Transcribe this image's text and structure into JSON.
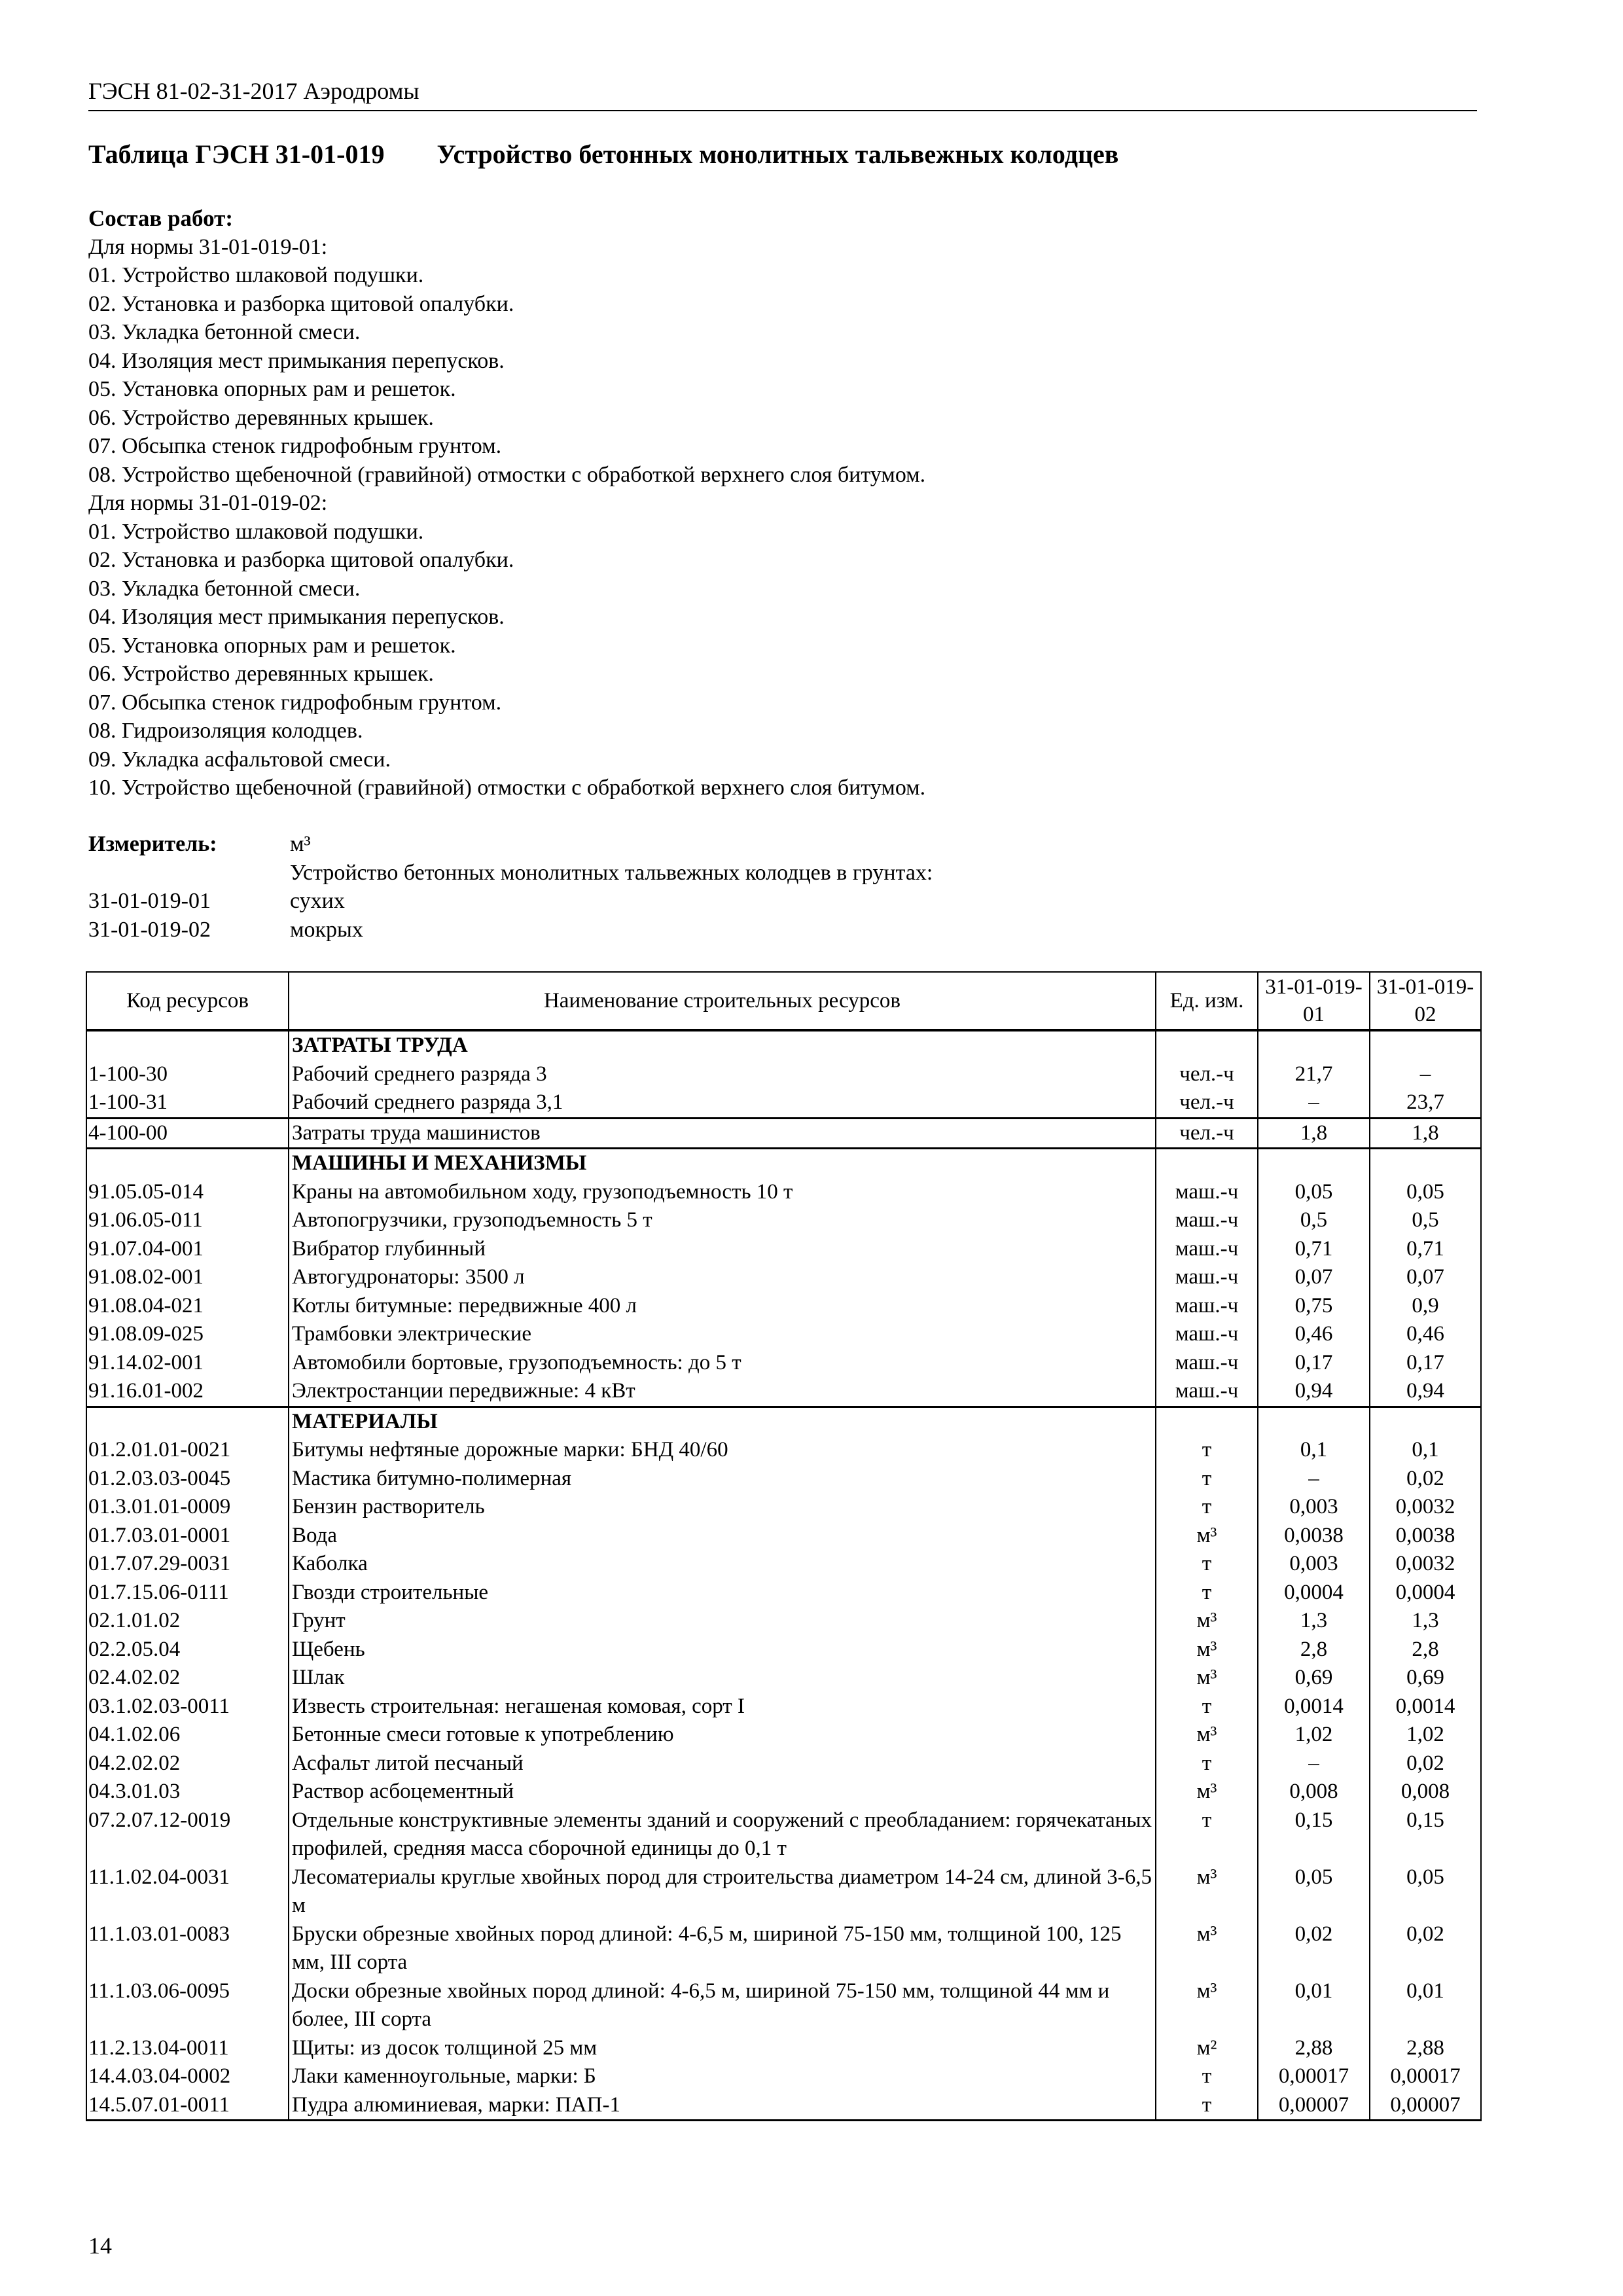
{
  "running_header": "ГЭСН 81-02-31-2017 Аэродромы",
  "title": {
    "number": "Таблица ГЭСН 31-01-019",
    "text": "Устройство бетонных монолитных тальвежных колодцев"
  },
  "works": {
    "heading": "Состав работ:",
    "lines": [
      "Для нормы 31-01-019-01:",
      "01. Устройство шлаковой подушки.",
      "02. Установка и разборка щитовой опалубки.",
      "03. Укладка бетонной смеси.",
      "04. Изоляция мест примыкания перепусков.",
      "05. Установка опорных рам и решеток.",
      "06. Устройство деревянных крышек.",
      "07. Обсыпка стенок гидрофобным грунтом.",
      "08. Устройство щебеночной (гравийной) отмостки с обработкой верхнего слоя битумом.",
      "Для нормы 31-01-019-02:",
      "01. Устройство шлаковой подушки.",
      "02. Установка и разборка щитовой опалубки.",
      "03. Укладка бетонной смеси.",
      "04. Изоляция мест примыкания перепусков.",
      "05. Установка опорных рам и решеток.",
      "06. Устройство деревянных крышек.",
      "07. Обсыпка стенок гидрофобным грунтом.",
      "08. Гидроизоляция колодцев.",
      "09. Укладка асфальтовой смеси.",
      "10. Устройство щебеночной (гравийной) отмостки с обработкой верхнего слоя битумом."
    ]
  },
  "meter": {
    "label": "Измеритель:",
    "unit": "м³",
    "description": "Устройство бетонных монолитных тальвежных колодцев в грунтах:",
    "norms": [
      {
        "code": "31-01-019-01",
        "text": "сухих"
      },
      {
        "code": "31-01-019-02",
        "text": "мокрых"
      }
    ]
  },
  "table": {
    "headers": [
      "Код ресурсов",
      "Наименование строительных ресурсов",
      "Ед. изм.",
      "31-01-019-01",
      "31-01-019-02"
    ],
    "rows": [
      {
        "type": "section",
        "name": "ЗАТРАТЫ ТРУДА"
      },
      {
        "code": "1-100-30",
        "name": "Рабочий среднего разряда 3",
        "unit": "чел.-ч",
        "v1": "21,7",
        "v2": "–"
      },
      {
        "code": "1-100-31",
        "name": "Рабочий среднего разряда 3,1",
        "unit": "чел.-ч",
        "v1": "–",
        "v2": "23,7",
        "end": true
      },
      {
        "code": "4-100-00",
        "name": "Затраты труда машинистов",
        "unit": "чел.-ч",
        "v1": "1,8",
        "v2": "1,8",
        "end": true
      },
      {
        "type": "section",
        "name": "МАШИНЫ И МЕХАНИЗМЫ"
      },
      {
        "code": "91.05.05-014",
        "name": "Краны на автомобильном ходу, грузоподъемность 10 т",
        "unit": "маш.-ч",
        "v1": "0,05",
        "v2": "0,05"
      },
      {
        "code": "91.06.05-011",
        "name": "Автопогрузчики, грузоподъемность 5 т",
        "unit": "маш.-ч",
        "v1": "0,5",
        "v2": "0,5"
      },
      {
        "code": "91.07.04-001",
        "name": "Вибратор глубинный",
        "unit": "маш.-ч",
        "v1": "0,71",
        "v2": "0,71"
      },
      {
        "code": "91.08.02-001",
        "name": "Автогудронаторы: 3500 л",
        "unit": "маш.-ч",
        "v1": "0,07",
        "v2": "0,07"
      },
      {
        "code": "91.08.04-021",
        "name": "Котлы битумные: передвижные 400 л",
        "unit": "маш.-ч",
        "v1": "0,75",
        "v2": "0,9"
      },
      {
        "code": "91.08.09-025",
        "name": "Трамбовки электрические",
        "unit": "маш.-ч",
        "v1": "0,46",
        "v2": "0,46"
      },
      {
        "code": "91.14.02-001",
        "name": "Автомобили бортовые, грузоподъемность: до 5 т",
        "unit": "маш.-ч",
        "v1": "0,17",
        "v2": "0,17"
      },
      {
        "code": "91.16.01-002",
        "name": "Электростанции передвижные: 4 кВт",
        "unit": "маш.-ч",
        "v1": "0,94",
        "v2": "0,94",
        "end": true
      },
      {
        "type": "section",
        "name": "МАТЕРИАЛЫ"
      },
      {
        "code": "01.2.01.01-0021",
        "name": "Битумы нефтяные дорожные марки: БНД 40/60",
        "unit": "т",
        "v1": "0,1",
        "v2": "0,1"
      },
      {
        "code": "01.2.03.03-0045",
        "name": "Мастика битумно-полимерная",
        "unit": "т",
        "v1": "–",
        "v2": "0,02"
      },
      {
        "code": "01.3.01.01-0009",
        "name": "Бензин растворитель",
        "unit": "т",
        "v1": "0,003",
        "v2": "0,0032"
      },
      {
        "code": "01.7.03.01-0001",
        "name": "Вода",
        "unit": "м³",
        "v1": "0,0038",
        "v2": "0,0038"
      },
      {
        "code": "01.7.07.29-0031",
        "name": "Каболка",
        "unit": "т",
        "v1": "0,003",
        "v2": "0,0032"
      },
      {
        "code": "01.7.15.06-0111",
        "name": "Гвозди строительные",
        "unit": "т",
        "v1": "0,0004",
        "v2": "0,0004"
      },
      {
        "code": "02.1.01.02",
        "name": "Грунт",
        "unit": "м³",
        "v1": "1,3",
        "v2": "1,3"
      },
      {
        "code": "02.2.05.04",
        "name": "Щебень",
        "unit": "м³",
        "v1": "2,8",
        "v2": "2,8"
      },
      {
        "code": "02.4.02.02",
        "name": "Шлак",
        "unit": "м³",
        "v1": "0,69",
        "v2": "0,69"
      },
      {
        "code": "03.1.02.03-0011",
        "name": "Известь строительная: негашеная комовая, сорт I",
        "unit": "т",
        "v1": "0,0014",
        "v2": "0,0014"
      },
      {
        "code": "04.1.02.06",
        "name": "Бетонные смеси готовые к употреблению",
        "unit": "м³",
        "v1": "1,02",
        "v2": "1,02"
      },
      {
        "code": "04.2.02.02",
        "name": "Асфальт литой песчаный",
        "unit": "т",
        "v1": "–",
        "v2": "0,02"
      },
      {
        "code": "04.3.01.03",
        "name": "Раствор асбоцементный",
        "unit": "м³",
        "v1": "0,008",
        "v2": "0,008"
      },
      {
        "code": "07.2.07.12-0019",
        "name": "Отдельные конструктивные элементы зданий и сооружений с преобладанием: горячекатаных профилей, средняя масса сборочной единицы до 0,1 т",
        "unit": "т",
        "v1": "0,15",
        "v2": "0,15"
      },
      {
        "code": "11.1.02.04-0031",
        "name": "Лесоматериалы круглые хвойных пород для строительства диаметром 14-24 см, длиной 3-6,5 м",
        "unit": "м³",
        "v1": "0,05",
        "v2": "0,05"
      },
      {
        "code": "11.1.03.01-0083",
        "name": "Бруски обрезные хвойных пород длиной: 4-6,5 м, шириной 75-150 мм, толщиной 100, 125 мм, III сорта",
        "unit": "м³",
        "v1": "0,02",
        "v2": "0,02"
      },
      {
        "code": "11.1.03.06-0095",
        "name": "Доски обрезные хвойных пород длиной: 4-6,5 м, шириной 75-150 мм, толщиной 44 мм и более, III сорта",
        "unit": "м³",
        "v1": "0,01",
        "v2": "0,01"
      },
      {
        "code": "11.2.13.04-0011",
        "name": "Щиты: из досок толщиной 25 мм",
        "unit": "м²",
        "v1": "2,88",
        "v2": "2,88"
      },
      {
        "code": "14.4.03.04-0002",
        "name": "Лаки каменноугольные, марки: Б",
        "unit": "т",
        "v1": "0,00017",
        "v2": "0,00017"
      },
      {
        "code": "14.5.07.01-0011",
        "name": "Пудра алюминиевая, марки: ПАП-1",
        "unit": "т",
        "v1": "0,00007",
        "v2": "0,00007",
        "end": true
      }
    ]
  },
  "page_number": "14"
}
